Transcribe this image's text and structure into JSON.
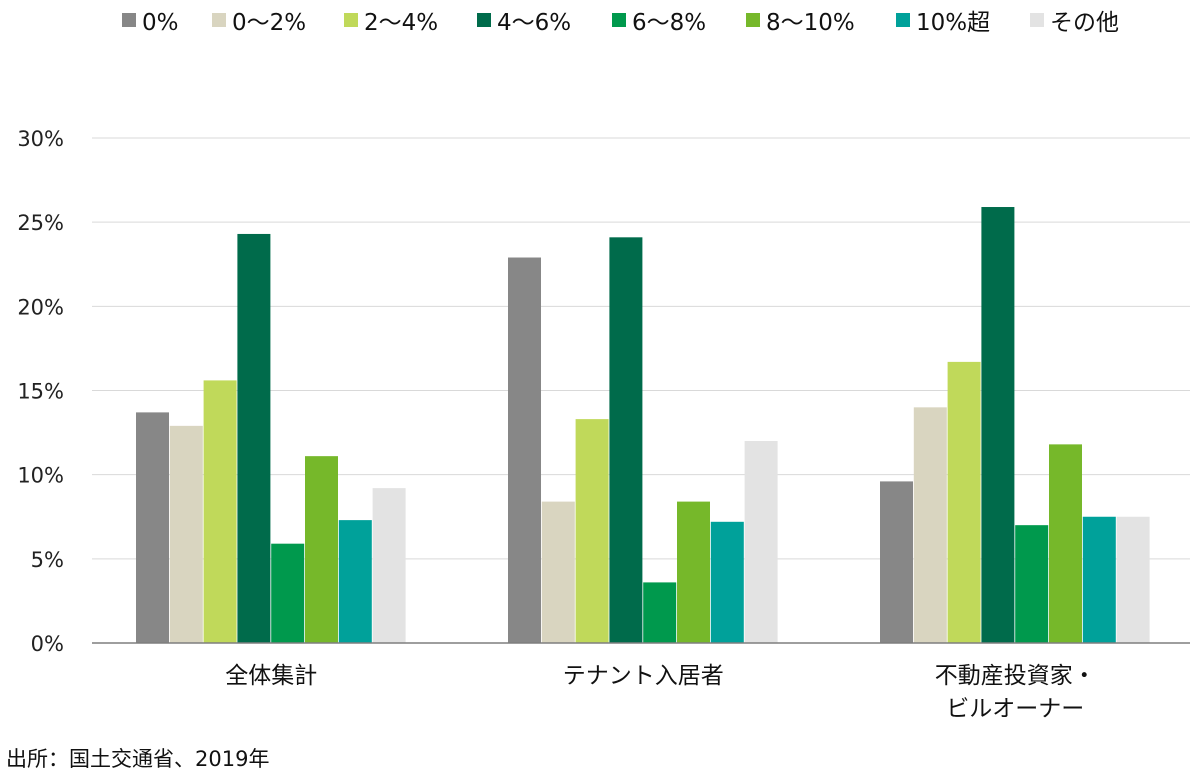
{
  "chart_data": {
    "type": "bar",
    "categories": [
      [
        "全体集計"
      ],
      [
        "テナント入居者"
      ],
      [
        "不動産投資家・",
        "ビルオーナー"
      ]
    ],
    "series": [
      {
        "name": "0%",
        "color": "#878787",
        "values": [
          13.7,
          22.9,
          9.6
        ]
      },
      {
        "name": "0～2%",
        "color": "#d9d5c0",
        "values": [
          12.9,
          8.4,
          14.0
        ]
      },
      {
        "name": "2～4%",
        "color": "#c0d95a",
        "values": [
          15.6,
          13.3,
          16.7
        ]
      },
      {
        "name": "4～6%",
        "color": "#006b4b",
        "values": [
          24.3,
          24.1,
          25.9
        ]
      },
      {
        "name": "6～8%",
        "color": "#00994d",
        "values": [
          5.9,
          3.6,
          7.0
        ]
      },
      {
        "name": "8～10%",
        "color": "#76b82a",
        "values": [
          11.1,
          8.4,
          11.8
        ]
      },
      {
        "name": "10%超",
        "color": "#00a19a",
        "values": [
          7.3,
          7.2,
          7.5
        ]
      },
      {
        "name": "その他",
        "color": "#e3e3e3",
        "values": [
          9.2,
          12.0,
          7.5
        ]
      }
    ],
    "ylim": [
      0,
      30
    ],
    "yticks": [
      0,
      5,
      10,
      15,
      20,
      25,
      30
    ],
    "ytick_labels": [
      "0%",
      "5%",
      "10%",
      "15%",
      "20%",
      "25%",
      "30%"
    ],
    "legend_position": "top",
    "grid": true
  },
  "source": "出所：国土交通省、2019年"
}
